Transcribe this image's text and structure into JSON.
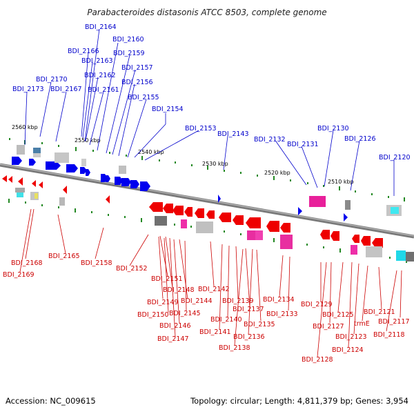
{
  "title": "Parabacteroides distasonis ATCC 8503, complete genome",
  "accession": "Accession: NC_009615",
  "summary": "Topology: circular; Length: 4,811,379 bp; Genes: 3,954",
  "scale_labels": [
    "2560 kbp",
    "2550 kbp",
    "2540 kbp",
    "2530 kbp",
    "2520 kbp",
    "2510 kbp"
  ],
  "top_genes": [
    "BDI_2164",
    "BDI_2160",
    "BDI_2166",
    "BDI_2159",
    "BDI_2163",
    "BDI_2157",
    "BDI_2170",
    "BDI_2162",
    "BDI_2156",
    "BDI_2173",
    "BDI_2167",
    "BDI_2161",
    "BDI_2155",
    "BDI_2154",
    "BDI_2153",
    "BDI_2143",
    "BDI_2132",
    "BDI_2131",
    "BDI_2130",
    "BDI_2126",
    "BDI_2120"
  ],
  "bottom_genes": [
    "BDI_2168",
    "BDI_2169",
    "BDI_2165",
    "BDI_2158",
    "BDI_2152",
    "BDI_2151",
    "BDI_2148",
    "BDI_2149",
    "BDI_2150",
    "BDI_2144",
    "BDI_2145",
    "BDI_2146",
    "BDI_2147",
    "BDI_2142",
    "BDI_2140",
    "BDI_2141",
    "BDI_2139",
    "BDI_2137",
    "BDI_2135",
    "BDI_2136",
    "BDI_2138",
    "BDI_2134",
    "BDI_2133",
    "BDI_2129",
    "BDI_2127",
    "BDI_2125",
    "BDI_2128",
    "BDI_2124",
    "BDI_2123",
    "trmE",
    "BDI_2121",
    "BDI_2118",
    "BDI_2117"
  ],
  "colors": {
    "forward": "#0000ee",
    "reverse": "#ee0000",
    "backbone": "#888888",
    "tick": "#228822"
  }
}
